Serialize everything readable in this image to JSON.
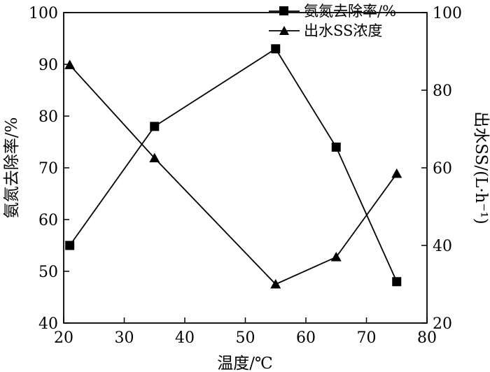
{
  "chart_data": {
    "type": "line",
    "x": [
      21,
      35,
      55,
      65,
      75
    ],
    "xlabel": "温度/℃",
    "xlim": [
      20,
      80
    ],
    "xticks": [
      20,
      30,
      40,
      50,
      60,
      70,
      80
    ],
    "ylabel_left": "氨氮去除率/%",
    "ylim_left": [
      40,
      100
    ],
    "yticks_left": [
      40,
      50,
      60,
      70,
      80,
      90,
      100
    ],
    "ylabel_right": "出水SS/(L·h⁻¹)",
    "ylim_right": [
      20,
      100
    ],
    "yticks_right": [
      20,
      40,
      60,
      80,
      100
    ],
    "grid": false,
    "legend_position": "top-right",
    "series": [
      {
        "name": "氨氮去除率/%",
        "axis": "left",
        "marker": "square",
        "values": [
          55,
          78,
          93,
          74,
          48
        ]
      },
      {
        "name": "出水SS浓度",
        "axis": "right",
        "marker": "triangle",
        "values": [
          86.5,
          62.5,
          30,
          37,
          58.5
        ]
      }
    ]
  }
}
